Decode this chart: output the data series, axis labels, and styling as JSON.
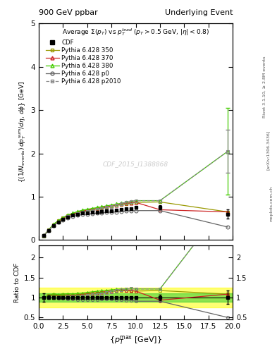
{
  "title_left": "900 GeV ppbar",
  "title_right": "Underlying Event",
  "plot_title": "Average $\\Sigma(p_T)$ vs $p_T^{lead}$ ($p_T > 0.5$ GeV, $|\\eta| < 0.8$)",
  "ylabel_main": "$\\{(1/N_\\mathrm{events})\\, dp_T^\\mathrm{sum}/d\\eta, d\\phi\\}$ [GeV]",
  "ylabel_ratio": "Ratio to CDF",
  "xlabel": "$\\{p_T^\\mathrm{max}$ [GeV]$\\}$",
  "watermark": "CDF_2015_I1388868",
  "rivet_text": "Rivet 3.1.10, ≥ 2.8M events",
  "arxiv_text": "[arXiv:1306.3436]",
  "mcplots_text": "mcplots.cern.ch",
  "ylim_main": [
    0,
    5
  ],
  "ylim_ratio": [
    0.45,
    2.3
  ],
  "xlim": [
    0,
    20
  ],
  "cdf_x": [
    0.5,
    1.0,
    1.5,
    2.0,
    2.5,
    3.0,
    3.5,
    4.0,
    4.5,
    5.0,
    5.5,
    6.0,
    6.5,
    7.0,
    7.5,
    8.0,
    8.5,
    9.0,
    9.5,
    10.0,
    12.5,
    19.5
  ],
  "cdf_y": [
    0.1,
    0.22,
    0.33,
    0.42,
    0.48,
    0.53,
    0.57,
    0.6,
    0.62,
    0.63,
    0.64,
    0.65,
    0.66,
    0.67,
    0.68,
    0.69,
    0.7,
    0.72,
    0.73,
    0.75,
    0.75,
    0.6
  ],
  "cdf_yerr": [
    0.01,
    0.01,
    0.01,
    0.01,
    0.01,
    0.01,
    0.01,
    0.01,
    0.01,
    0.01,
    0.01,
    0.01,
    0.01,
    0.01,
    0.01,
    0.01,
    0.01,
    0.01,
    0.01,
    0.01,
    0.05,
    0.1
  ],
  "p350_x": [
    0.5,
    1.0,
    1.5,
    2.0,
    2.5,
    3.0,
    3.5,
    4.0,
    4.5,
    5.0,
    5.5,
    6.0,
    6.5,
    7.0,
    7.5,
    8.0,
    8.5,
    9.0,
    9.5,
    10.0,
    12.5,
    19.5
  ],
  "p350_y": [
    0.1,
    0.23,
    0.35,
    0.44,
    0.51,
    0.56,
    0.6,
    0.63,
    0.66,
    0.68,
    0.7,
    0.72,
    0.74,
    0.76,
    0.78,
    0.8,
    0.82,
    0.84,
    0.85,
    0.87,
    0.88,
    0.65
  ],
  "p370_x": [
    0.5,
    1.0,
    1.5,
    2.0,
    2.5,
    3.0,
    3.5,
    4.0,
    4.5,
    5.0,
    5.5,
    6.0,
    6.5,
    7.0,
    7.5,
    8.0,
    8.5,
    9.0,
    9.5,
    10.0,
    12.5,
    19.5
  ],
  "p370_y": [
    0.1,
    0.23,
    0.35,
    0.44,
    0.51,
    0.56,
    0.6,
    0.64,
    0.67,
    0.69,
    0.71,
    0.73,
    0.75,
    0.77,
    0.79,
    0.81,
    0.83,
    0.85,
    0.86,
    0.87,
    0.7,
    0.65
  ],
  "p380_x": [
    0.5,
    1.0,
    1.5,
    2.0,
    2.5,
    3.0,
    3.5,
    4.0,
    4.5,
    5.0,
    5.5,
    6.0,
    6.5,
    7.0,
    7.5,
    8.0,
    8.5,
    9.0,
    9.5,
    10.0,
    12.5,
    19.5
  ],
  "p380_y": [
    0.1,
    0.23,
    0.36,
    0.45,
    0.52,
    0.58,
    0.62,
    0.66,
    0.69,
    0.71,
    0.73,
    0.75,
    0.77,
    0.79,
    0.81,
    0.83,
    0.85,
    0.87,
    0.89,
    0.91,
    0.91,
    2.05
  ],
  "p380_yerr_last": [
    1.0,
    1.0
  ],
  "pp0_x": [
    0.5,
    1.0,
    1.5,
    2.0,
    2.5,
    3.0,
    3.5,
    4.0,
    4.5,
    5.0,
    5.5,
    6.0,
    6.5,
    7.0,
    7.5,
    8.0,
    8.5,
    9.0,
    9.5,
    10.0,
    12.5,
    19.5
  ],
  "pp0_y": [
    0.1,
    0.22,
    0.33,
    0.41,
    0.47,
    0.51,
    0.55,
    0.57,
    0.59,
    0.6,
    0.61,
    0.62,
    0.63,
    0.64,
    0.65,
    0.65,
    0.66,
    0.67,
    0.68,
    0.68,
    0.68,
    0.3
  ],
  "pp2010_x": [
    0.5,
    1.0,
    1.5,
    2.0,
    2.5,
    3.0,
    3.5,
    4.0,
    4.5,
    5.0,
    5.5,
    6.0,
    6.5,
    7.0,
    7.5,
    8.0,
    8.5,
    9.0,
    9.5,
    10.0,
    12.5,
    19.5
  ],
  "pp2010_y": [
    0.1,
    0.22,
    0.33,
    0.42,
    0.48,
    0.54,
    0.58,
    0.61,
    0.64,
    0.66,
    0.68,
    0.7,
    0.72,
    0.75,
    0.78,
    0.81,
    0.84,
    0.87,
    0.89,
    0.91,
    0.91,
    2.05
  ],
  "pp2010_yerr_last": [
    0.5,
    0.5
  ],
  "color_cdf": "#000000",
  "color_p350": "#999900",
  "color_p370": "#cc2222",
  "color_p380": "#44cc00",
  "color_pp0": "#666666",
  "color_pp2010": "#888888",
  "band_yellow_lo": 0.75,
  "band_yellow_hi": 1.25,
  "band_green_lo": 0.9,
  "band_green_hi": 1.1
}
